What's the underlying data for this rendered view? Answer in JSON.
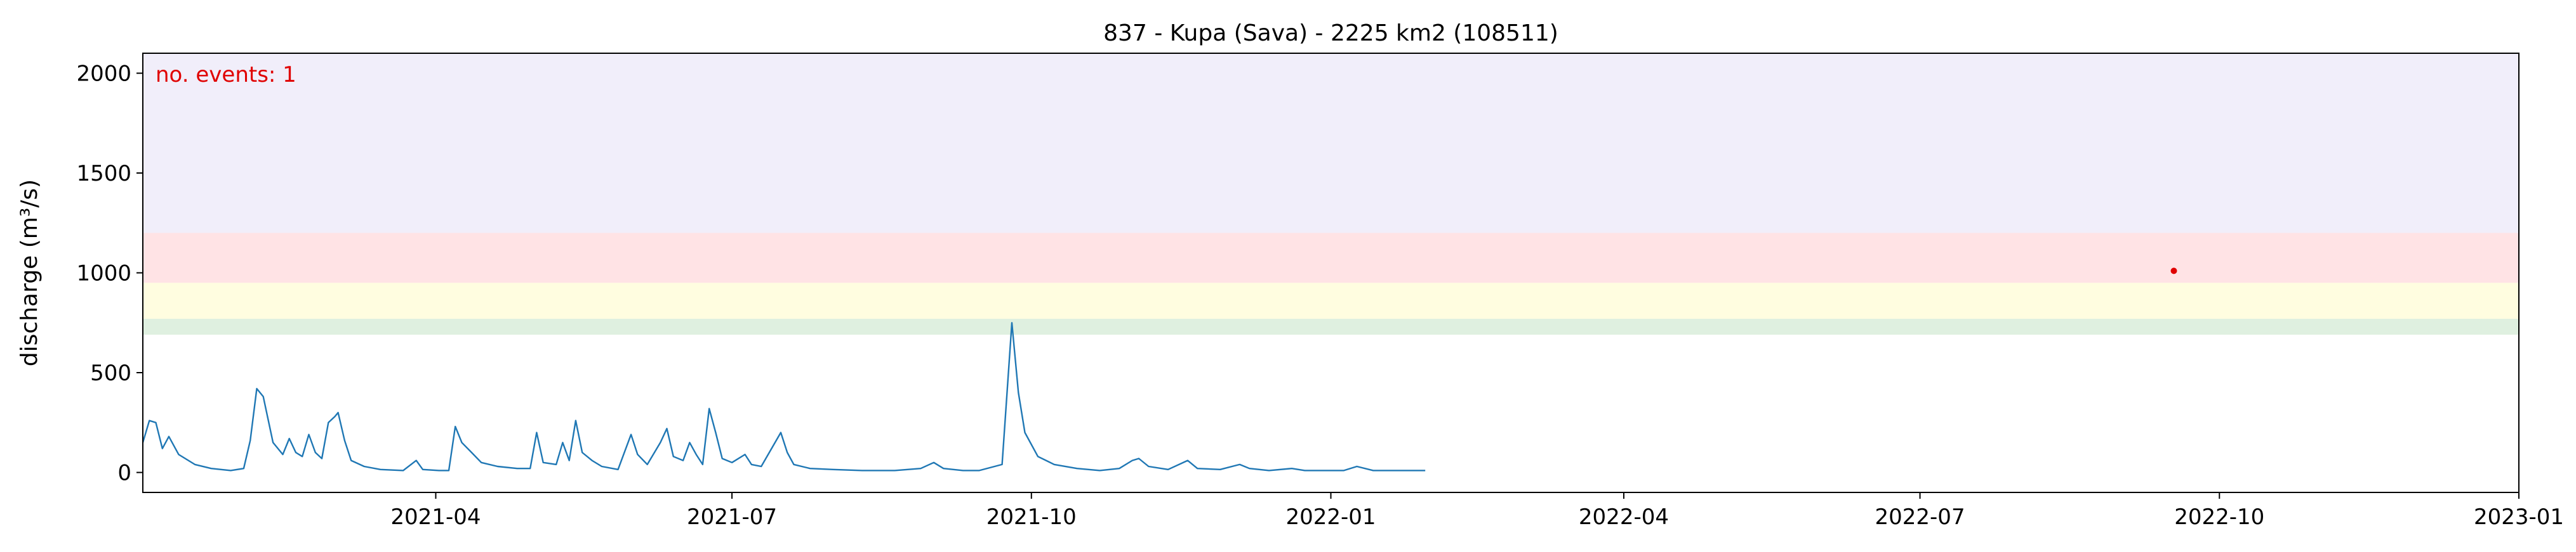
{
  "chart_data": {
    "type": "line",
    "title": "837 - Kupa (Sava) - 2225 km2 (108511)",
    "xlabel": "",
    "ylabel": "discharge (m³/s)",
    "annotation": "no. events: 1",
    "xlim": [
      "2021-01-01",
      "2023-01-01"
    ],
    "ylim": [
      -100,
      2100
    ],
    "x_ticks": [
      "2021-04",
      "2021-07",
      "2021-10",
      "2022-01",
      "2022-04",
      "2022-07",
      "2022-10",
      "2023-01"
    ],
    "y_ticks": [
      0,
      500,
      1000,
      1500,
      2000
    ],
    "grid": false,
    "threshold_bands": [
      {
        "from": 690,
        "to": 770,
        "color": "#dff0e0"
      },
      {
        "from": 770,
        "to": 950,
        "color": "#fffde0"
      },
      {
        "from": 950,
        "to": 1200,
        "color": "#ffe3e5"
      },
      {
        "from": 1200,
        "to": 2100,
        "color": "#f1eefa"
      }
    ],
    "series": [
      {
        "color": "#1f77b4",
        "points": [
          [
            "2021-01-01",
            150
          ],
          [
            "2021-01-03",
            260
          ],
          [
            "2021-01-05",
            250
          ],
          [
            "2021-01-07",
            120
          ],
          [
            "2021-01-09",
            180
          ],
          [
            "2021-01-12",
            90
          ],
          [
            "2021-01-17",
            40
          ],
          [
            "2021-01-22",
            20
          ],
          [
            "2021-01-28",
            10
          ],
          [
            "2021-02-01",
            20
          ],
          [
            "2021-02-03",
            160
          ],
          [
            "2021-02-05",
            420
          ],
          [
            "2021-02-07",
            380
          ],
          [
            "2021-02-10",
            150
          ],
          [
            "2021-02-13",
            90
          ],
          [
            "2021-02-15",
            170
          ],
          [
            "2021-02-17",
            100
          ],
          [
            "2021-02-19",
            80
          ],
          [
            "2021-02-21",
            190
          ],
          [
            "2021-02-23",
            100
          ],
          [
            "2021-02-25",
            70
          ],
          [
            "2021-02-27",
            250
          ],
          [
            "2021-03-01",
            280
          ],
          [
            "2021-03-02",
            300
          ],
          [
            "2021-03-04",
            160
          ],
          [
            "2021-03-06",
            60
          ],
          [
            "2021-03-10",
            30
          ],
          [
            "2021-03-15",
            15
          ],
          [
            "2021-03-22",
            10
          ],
          [
            "2021-03-26",
            60
          ],
          [
            "2021-03-28",
            15
          ],
          [
            "2021-04-02",
            10
          ],
          [
            "2021-04-05",
            10
          ],
          [
            "2021-04-07",
            230
          ],
          [
            "2021-04-09",
            150
          ],
          [
            "2021-04-12",
            100
          ],
          [
            "2021-04-15",
            50
          ],
          [
            "2021-04-20",
            30
          ],
          [
            "2021-04-26",
            20
          ],
          [
            "2021-04-30",
            20
          ],
          [
            "2021-05-02",
            200
          ],
          [
            "2021-05-04",
            50
          ],
          [
            "2021-05-08",
            40
          ],
          [
            "2021-05-10",
            150
          ],
          [
            "2021-05-12",
            60
          ],
          [
            "2021-05-14",
            260
          ],
          [
            "2021-05-16",
            100
          ],
          [
            "2021-05-19",
            60
          ],
          [
            "2021-05-22",
            30
          ],
          [
            "2021-05-27",
            15
          ],
          [
            "2021-05-31",
            190
          ],
          [
            "2021-06-02",
            90
          ],
          [
            "2021-06-05",
            40
          ],
          [
            "2021-06-09",
            150
          ],
          [
            "2021-06-11",
            220
          ],
          [
            "2021-06-13",
            80
          ],
          [
            "2021-06-16",
            60
          ],
          [
            "2021-06-18",
            150
          ],
          [
            "2021-06-20",
            90
          ],
          [
            "2021-06-22",
            40
          ],
          [
            "2021-06-24",
            320
          ],
          [
            "2021-06-26",
            200
          ],
          [
            "2021-06-28",
            70
          ],
          [
            "2021-07-01",
            50
          ],
          [
            "2021-07-05",
            90
          ],
          [
            "2021-07-07",
            40
          ],
          [
            "2021-07-10",
            30
          ],
          [
            "2021-07-16",
            200
          ],
          [
            "2021-07-18",
            100
          ],
          [
            "2021-07-20",
            40
          ],
          [
            "2021-07-25",
            20
          ],
          [
            "2021-08-01",
            15
          ],
          [
            "2021-08-10",
            10
          ],
          [
            "2021-08-20",
            10
          ],
          [
            "2021-08-28",
            20
          ],
          [
            "2021-09-01",
            50
          ],
          [
            "2021-09-04",
            20
          ],
          [
            "2021-09-10",
            10
          ],
          [
            "2021-09-15",
            10
          ],
          [
            "2021-09-22",
            40
          ],
          [
            "2021-09-25",
            750
          ],
          [
            "2021-09-27",
            400
          ],
          [
            "2021-09-29",
            200
          ],
          [
            "2021-10-03",
            80
          ],
          [
            "2021-10-08",
            40
          ],
          [
            "2021-10-15",
            20
          ],
          [
            "2021-10-22",
            10
          ],
          [
            "2021-10-28",
            20
          ],
          [
            "2021-11-01",
            60
          ],
          [
            "2021-11-03",
            70
          ],
          [
            "2021-11-06",
            30
          ],
          [
            "2021-11-12",
            15
          ],
          [
            "2021-11-18",
            60
          ],
          [
            "2021-11-21",
            20
          ],
          [
            "2021-11-28",
            15
          ],
          [
            "2021-12-04",
            40
          ],
          [
            "2021-12-07",
            20
          ],
          [
            "2021-12-13",
            10
          ],
          [
            "2021-12-20",
            20
          ],
          [
            "2021-12-24",
            10
          ],
          [
            "2022-01-02",
            10
          ],
          [
            "2022-01-05",
            10
          ],
          [
            "2022-01-09",
            30
          ],
          [
            "2022-01-14",
            10
          ],
          [
            "2022-01-18",
            10
          ],
          [
            "2022-01-22",
            10
          ],
          [
            "2022-01-30",
            10
          ]
        ]
      }
    ],
    "events": [
      {
        "x": "2022-09-17",
        "y": 1010,
        "color": "#e00000"
      }
    ]
  }
}
